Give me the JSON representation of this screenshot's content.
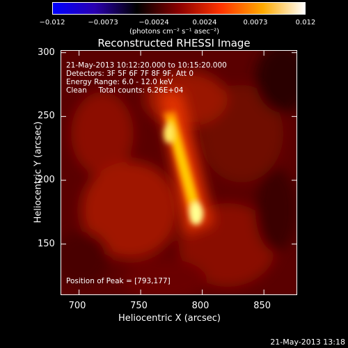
{
  "colorbar": {
    "ticks": [
      "−0.012",
      "−0.0073",
      "−0.0024",
      "0.0024",
      "0.0073",
      "0.012"
    ],
    "unit": "(photons cm⁻² s⁻¹ asec⁻²)",
    "colors": [
      "#0000ff",
      "#2a00b0",
      "#000000",
      "#8a0000",
      "#ff3300",
      "#ffaa00",
      "#ffffff"
    ]
  },
  "chart_data": {
    "type": "heatmap",
    "title": "Reconstructed RHESSI Image",
    "xlabel": "Heliocentric X (arcsec)",
    "ylabel": "Heliocentric Y (arcsec)",
    "xlim": [
      685,
      877
    ],
    "ylim": [
      110,
      302
    ],
    "x_ticks": [
      700,
      750,
      800,
      850
    ],
    "y_ticks": [
      150,
      200,
      250,
      300
    ],
    "peak": [
      793,
      177
    ],
    "annotations": {
      "date": "21-May-2013 10:12:20.000 to 10:15:20.000",
      "detectors": "Detectors: 3F 5F 6F 7F 8F 9F, Att 0",
      "energy": "Energy Range: 6.0 - 12.0 keV",
      "clean": "Clean     Total counts: 6.26E+04",
      "peak_text": "Position of Peak = [793,177]"
    }
  },
  "footer": "21-May-2013 13:18"
}
